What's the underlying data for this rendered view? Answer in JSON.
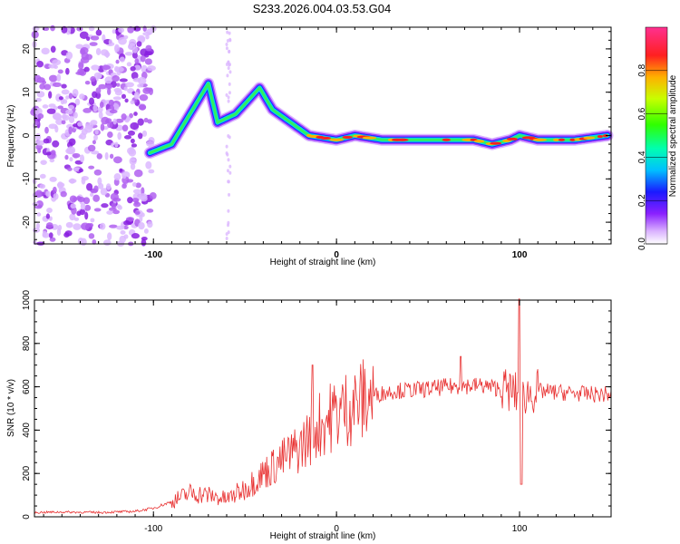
{
  "title": "S233.2026.004.03.53.G04",
  "chart_data": [
    {
      "type": "heatmap",
      "name": "spectrogram",
      "xlabel": "Height of straight line (km)",
      "ylabel": "Frequency (Hz)",
      "xlim": [
        -165,
        150
      ],
      "ylim": [
        -25,
        25
      ],
      "xticks": [
        -100,
        0,
        100
      ],
      "yticks": [
        -20,
        -10,
        0,
        10,
        20
      ],
      "colorbar": {
        "label": "Normalized spectral amplitude",
        "range": [
          0,
          1
        ],
        "ticks": [
          "0.0",
          "0.2",
          "0.4",
          "0.6",
          "0.8"
        ],
        "tick_values": [
          0.0,
          0.2,
          0.4,
          0.6,
          0.8
        ]
      },
      "ridge": [
        {
          "x": -102,
          "y": -4
        },
        {
          "x": -90,
          "y": -2
        },
        {
          "x": -80,
          "y": 5
        },
        {
          "x": -70,
          "y": 12
        },
        {
          "x": -65,
          "y": 3
        },
        {
          "x": -55,
          "y": 5
        },
        {
          "x": -42,
          "y": 11
        },
        {
          "x": -35,
          "y": 6
        },
        {
          "x": -25,
          "y": 3
        },
        {
          "x": -15,
          "y": 0
        },
        {
          "x": 0,
          "y": -1
        },
        {
          "x": 10,
          "y": 0
        },
        {
          "x": 25,
          "y": -1
        },
        {
          "x": 55,
          "y": -1
        },
        {
          "x": 60,
          "y": -1
        },
        {
          "x": 75,
          "y": -1
        },
        {
          "x": 85,
          "y": -2
        },
        {
          "x": 95,
          "y": -1
        },
        {
          "x": 100,
          "y": 0
        },
        {
          "x": 110,
          "y": -1
        },
        {
          "x": 130,
          "y": -1
        },
        {
          "x": 148,
          "y": 0
        }
      ]
    },
    {
      "type": "line",
      "name": "snr",
      "xlabel": "Height of straight line (km)",
      "ylabel": "SNR (10 * v/v)",
      "xlim": [
        -165,
        150
      ],
      "ylim": [
        0,
        1000
      ],
      "xticks": [
        -100,
        0,
        100
      ],
      "yticks": [
        0,
        200,
        400,
        600,
        800,
        1000
      ],
      "color": "#e83030",
      "x": [
        -165,
        -150,
        -130,
        -110,
        -100,
        -90,
        -80,
        -70,
        -60,
        -50,
        -40,
        -30,
        -20,
        -10,
        0,
        10,
        20,
        30,
        40,
        50,
        60,
        70,
        80,
        90,
        95,
        100,
        105,
        110,
        120,
        130,
        140,
        150
      ],
      "y": [
        20,
        22,
        20,
        25,
        40,
        70,
        110,
        100,
        80,
        130,
        200,
        260,
        320,
        420,
        480,
        520,
        560,
        580,
        585,
        590,
        600,
        605,
        605,
        590,
        580,
        560,
        570,
        580,
        575,
        570,
        565,
        565
      ],
      "spikes": [
        {
          "x": -13,
          "y": 700
        },
        {
          "x": 68,
          "y": 740
        },
        {
          "x": 100,
          "y": 1010
        },
        {
          "x": 101,
          "y": 150
        }
      ]
    }
  ]
}
